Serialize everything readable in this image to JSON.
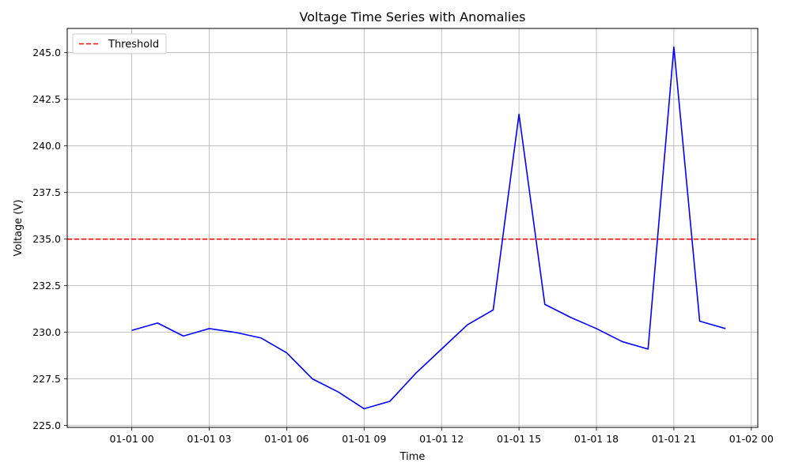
{
  "chart_data": {
    "type": "line",
    "title": "Voltage Time Series with Anomalies",
    "xlabel": "Time",
    "ylabel": "Voltage (V)",
    "x": [
      "01-01 00:00",
      "01-01 01:00",
      "01-01 02:00",
      "01-01 03:00",
      "01-01 04:00",
      "01-01 05:00",
      "01-01 06:00",
      "01-01 07:00",
      "01-01 08:00",
      "01-01 09:00",
      "01-01 10:00",
      "01-01 11:00",
      "01-01 12:00",
      "01-01 13:00",
      "01-01 14:00",
      "01-01 15:00",
      "01-01 16:00",
      "01-01 17:00",
      "01-01 18:00",
      "01-01 19:00",
      "01-01 20:00",
      "01-01 21:00",
      "01-01 22:00",
      "01-01 23:00"
    ],
    "series": [
      {
        "color": "#0000ff",
        "values": [
          230.1,
          230.5,
          229.8,
          230.2,
          230.0,
          229.7,
          228.9,
          227.5,
          226.8,
          225.9,
          226.3,
          227.8,
          229.1,
          230.4,
          231.2,
          241.7,
          231.5,
          230.8,
          230.2,
          229.5,
          229.1,
          245.3,
          230.6,
          230.2
        ]
      }
    ],
    "threshold": {
      "name": "Threshold",
      "value": 235.0,
      "color": "#ff0000",
      "style": "dashed"
    },
    "xlim": [
      "12-31 21:30",
      "01-02 00:15"
    ],
    "ylim": [
      224.9,
      246.3
    ],
    "xticks": [
      "01-01 00",
      "01-01 03",
      "01-01 06",
      "01-01 09",
      "01-01 12",
      "01-01 15",
      "01-01 18",
      "01-01 21",
      "01-02 00"
    ],
    "yticks": [
      225.0,
      227.5,
      230.0,
      232.5,
      235.0,
      237.5,
      240.0,
      242.5,
      245.0
    ],
    "ytick_labels": [
      "225.0",
      "227.5",
      "230.0",
      "232.5",
      "235.0",
      "237.5",
      "240.0",
      "242.5",
      "245.0"
    ],
    "grid": true,
    "legend_position": "top-left"
  }
}
